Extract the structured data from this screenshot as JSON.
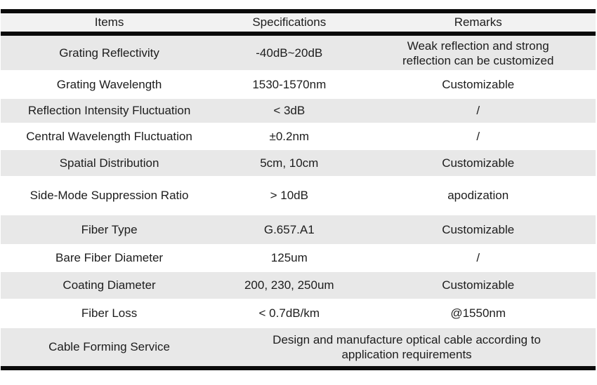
{
  "table": {
    "headers": [
      "Items",
      "Specifications",
      "Remarks"
    ],
    "rows": [
      {
        "item": "Grating Reflectivity",
        "spec": "-40dB~20dB",
        "remark_lines": [
          "Weak reflection and strong",
          "reflection can be customized"
        ]
      },
      {
        "item": "Grating Wavelength",
        "spec": "1530-1570nm",
        "remark": "Customizable"
      },
      {
        "item": "Reflection Intensity Fluctuation",
        "spec": "< 3dB",
        "remark": "/"
      },
      {
        "item": "Central Wavelength Fluctuation",
        "spec": "±0.2nm",
        "remark": "/"
      },
      {
        "item": "Spatial Distribution",
        "spec": "5cm, 10cm",
        "remark": "Customizable"
      },
      {
        "item": "Side-Mode Suppression Ratio",
        "spec": "> 10dB",
        "remark": "apodization"
      },
      {
        "item": "Fiber Type",
        "spec": "G.657.A1",
        "remark": "Customizable"
      },
      {
        "item": "Bare Fiber Diameter",
        "spec": "125um",
        "remark": "/"
      },
      {
        "item": "Coating Diameter",
        "spec": "200, 230, 250um",
        "remark": "Customizable"
      },
      {
        "item": "Fiber Loss",
        "spec": "< 0.7dB/km",
        "remark": "@1550nm"
      },
      {
        "item": "Cable Forming Service",
        "merged_lines": [
          "Design and manufacture optical cable according to",
          "application requirements"
        ]
      }
    ],
    "colors": {
      "header_bg": "#f2f2f2",
      "alt_row_bg": "#e8e8e8",
      "row_bg": "#ffffff",
      "rule": "#0a0a0a",
      "text": "#1d1d1d"
    }
  }
}
